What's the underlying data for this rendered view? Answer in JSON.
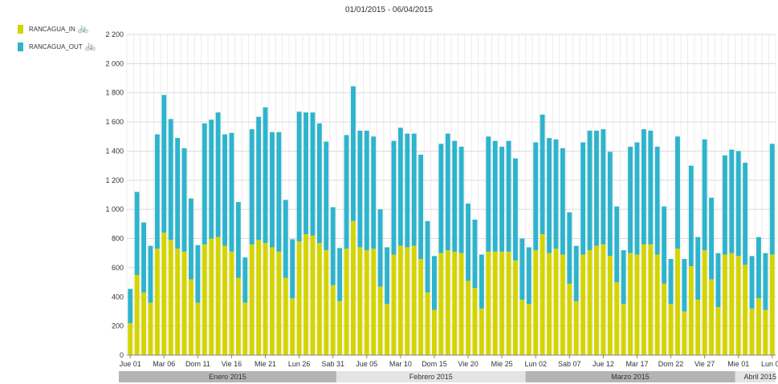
{
  "title": "01/01/2015 - 06/04/2015",
  "legend": [
    {
      "label": "RANCAGUA_IN",
      "color": "#d4d400",
      "icon": "bicycle-icon"
    },
    {
      "label": "RANCAGUA_OUT",
      "color": "#2eb4cc",
      "icon": "bicycle-icon"
    }
  ],
  "chart_data": {
    "type": "bar",
    "stacked": true,
    "title": "01/01/2015 - 06/04/2015",
    "ylim": [
      0,
      2200
    ],
    "yticks": [
      0,
      200,
      400,
      600,
      800,
      1000,
      1200,
      1400,
      1600,
      1800,
      2000,
      2200
    ],
    "ytick_labels": [
      "0",
      "200",
      "400",
      "600",
      "800",
      "1 000",
      "1 200",
      "1 400",
      "1 600",
      "1 800",
      "2 000",
      "2 200"
    ],
    "grid": true,
    "legend_position": "top-left",
    "categories": [
      "Jue 01",
      "Vie 02",
      "Sab 03",
      "Dom 04",
      "Lun 05",
      "Mar 06",
      "Mie 07",
      "Jue 08",
      "Vie 09",
      "Sab 10",
      "Dom 11",
      "Lun 12",
      "Mar 13",
      "Mie 14",
      "Jue 15",
      "Vie 16",
      "Sab 17",
      "Dom 18",
      "Lun 19",
      "Mar 20",
      "Mie 21",
      "Jue 22",
      "Vie 23",
      "Sab 24",
      "Dom 25",
      "Lun 26",
      "Mar 27",
      "Mie 28",
      "Jue 29",
      "Vie 30",
      "Sab 31",
      "Dom 01",
      "Lun 02",
      "Mar 03",
      "Mie 04",
      "Jue 05",
      "Vie 06",
      "Sab 07",
      "Dom 08",
      "Lun 09",
      "Mar 10",
      "Mie 11",
      "Jue 12",
      "Vie 13",
      "Sab 14",
      "Dom 15",
      "Lun 16",
      "Mar 17",
      "Mie 18",
      "Jue 19",
      "Vie 20",
      "Sab 21",
      "Dom 22",
      "Lun 23",
      "Mar 24",
      "Mie 25",
      "Jue 26",
      "Vie 27",
      "Sab 28",
      "Dom 01",
      "Lun 02",
      "Mar 03",
      "Mie 04",
      "Jue 05",
      "Vie 06",
      "Sab 07",
      "Dom 08",
      "Lun 09",
      "Mar 10",
      "Mie 11",
      "Jue 12",
      "Vie 13",
      "Sab 14",
      "Dom 15",
      "Lun 16",
      "Mar 17",
      "Mie 18",
      "Jue 19",
      "Vie 20",
      "Sab 21",
      "Dom 22",
      "Lun 23",
      "Mar 24",
      "Mie 25",
      "Jue 26",
      "Vie 27",
      "Sab 28",
      "Dom 29",
      "Lun 30",
      "Mar 31",
      "Mie 01",
      "Jue 02",
      "Vie 03",
      "Sab 04",
      "Dom 05",
      "Lun 06"
    ],
    "xtick_labels": [
      {
        "index": 0,
        "label": "Jue 01"
      },
      {
        "index": 5,
        "label": "Mar 06"
      },
      {
        "index": 10,
        "label": "Dom 11"
      },
      {
        "index": 15,
        "label": "Vie 16"
      },
      {
        "index": 20,
        "label": "Mie 21"
      },
      {
        "index": 25,
        "label": "Lun 26"
      },
      {
        "index": 30,
        "label": "Sab 31"
      },
      {
        "index": 35,
        "label": "Jue 05"
      },
      {
        "index": 40,
        "label": "Mar 10"
      },
      {
        "index": 45,
        "label": "Dom 15"
      },
      {
        "index": 50,
        "label": "Vie 20"
      },
      {
        "index": 55,
        "label": "Mie 25"
      },
      {
        "index": 60,
        "label": "Lun 02"
      },
      {
        "index": 65,
        "label": "Sab 07"
      },
      {
        "index": 70,
        "label": "Jue 12"
      },
      {
        "index": 75,
        "label": "Mar 17"
      },
      {
        "index": 80,
        "label": "Dom 22"
      },
      {
        "index": 85,
        "label": "Vie 27"
      },
      {
        "index": 90,
        "label": "Mie 01"
      },
      {
        "index": 95,
        "label": "Lun 06"
      }
    ],
    "months": [
      {
        "label": "Enero 2015",
        "start": 0,
        "count": 31
      },
      {
        "label": "Febrero 2015",
        "start": 31,
        "count": 28
      },
      {
        "label": "Marzo 2015",
        "start": 59,
        "count": 31
      },
      {
        "label": "Abril 2015",
        "start": 90,
        "count": 6
      }
    ],
    "series": [
      {
        "name": "RANCAGUA_IN",
        "color": "#d4d400",
        "values": [
          220,
          550,
          430,
          360,
          730,
          840,
          790,
          730,
          710,
          520,
          360,
          760,
          800,
          810,
          750,
          710,
          530,
          360,
          760,
          790,
          770,
          740,
          710,
          530,
          390,
          780,
          830,
          820,
          770,
          720,
          480,
          370,
          730,
          920,
          740,
          720,
          730,
          470,
          350,
          690,
          750,
          740,
          750,
          660,
          430,
          310,
          700,
          720,
          710,
          700,
          510,
          460,
          320,
          710,
          710,
          710,
          710,
          650,
          380,
          350,
          720,
          830,
          700,
          730,
          690,
          490,
          370,
          690,
          720,
          750,
          760,
          680,
          500,
          350,
          700,
          690,
          760,
          760,
          690,
          490,
          350,
          730,
          300,
          610,
          380,
          720,
          520,
          330,
          690,
          700,
          680,
          620,
          320,
          390,
          310,
          690
        ]
      },
      {
        "name": "RANCAGUA_OUT",
        "color": "#2eb4cc",
        "values": [
          235,
          570,
          480,
          390,
          785,
          945,
          830,
          760,
          710,
          555,
          395,
          830,
          815,
          855,
          765,
          815,
          520,
          310,
          790,
          845,
          930,
          790,
          820,
          535,
          405,
          890,
          835,
          845,
          820,
          745,
          535,
          365,
          780,
          925,
          800,
          820,
          770,
          530,
          390,
          780,
          810,
          780,
          770,
          715,
          490,
          370,
          750,
          800,
          760,
          730,
          530,
          470,
          370,
          790,
          760,
          720,
          760,
          700,
          420,
          390,
          740,
          820,
          790,
          750,
          730,
          490,
          380,
          770,
          820,
          790,
          790,
          715,
          520,
          370,
          730,
          770,
          790,
          780,
          740,
          530,
          310,
          770,
          360,
          690,
          430,
          760,
          560,
          370,
          680,
          710,
          720,
          700,
          360,
          420,
          390,
          760
        ]
      }
    ]
  }
}
